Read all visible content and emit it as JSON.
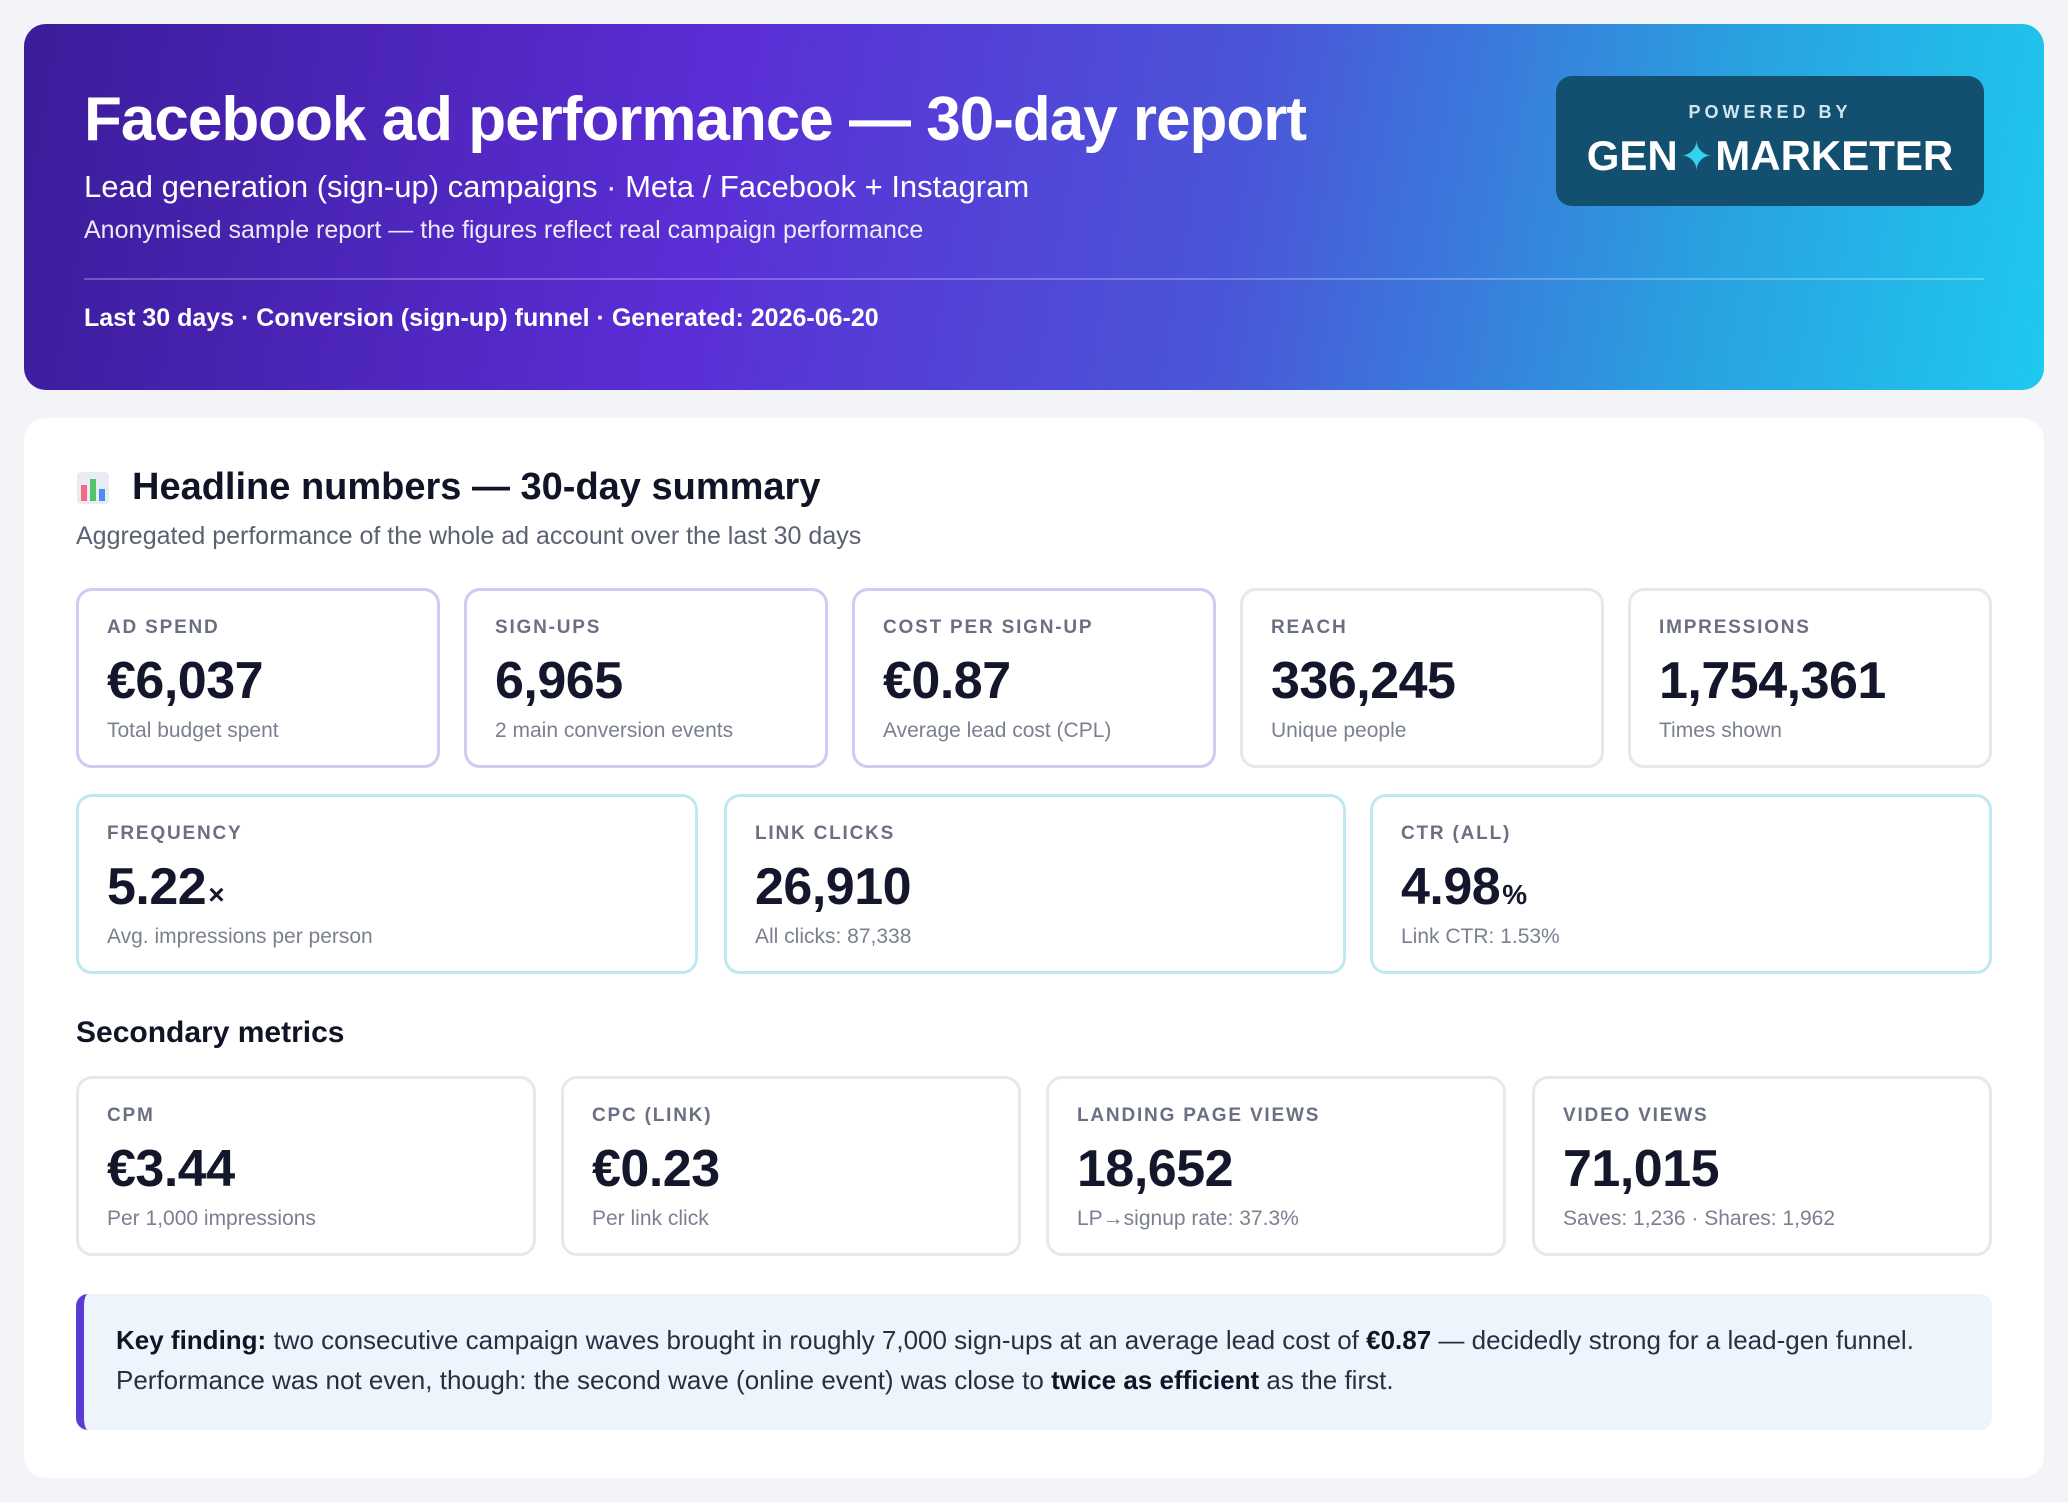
{
  "header": {
    "title": "Facebook ad performance — 30-day report",
    "subtitle": "Lead generation (sign-up) campaigns · Meta / Facebook + Instagram",
    "note": "Anonymised sample report — the figures reflect real campaign performance",
    "meta": "Last 30 days · Conversion (sign-up) funnel · Generated: 2026-06-20",
    "brand": {
      "powered_by": "POWERED BY",
      "name_left": "GEN",
      "sparkle": "✦",
      "name_right": "MARKETER"
    }
  },
  "summary": {
    "icon": "bar-chart-icon",
    "title": "Headline numbers — 30-day summary",
    "subtitle": "Aggregated performance of the whole ad account over the last 30 days",
    "kpis": [
      {
        "label": "AD SPEND",
        "value": "€6,037",
        "desc": "Total budget spent"
      },
      {
        "label": "SIGN-UPS",
        "value": "6,965",
        "desc": "2 main conversion events"
      },
      {
        "label": "COST PER SIGN-UP",
        "value": "€0.87",
        "desc": "Average lead cost (CPL)"
      },
      {
        "label": "REACH",
        "value": "336,245",
        "desc": "Unique people"
      },
      {
        "label": "IMPRESSIONS",
        "value": "1,754,361",
        "desc": "Times shown"
      },
      {
        "label": "FREQUENCY",
        "value": "5.22",
        "unit": "×",
        "desc": "Avg. impressions per person"
      },
      {
        "label": "LINK CLICKS",
        "value": "26,910",
        "desc": "All clicks: 87,338"
      },
      {
        "label": "CTR (ALL)",
        "value": "4.98",
        "unit": "%",
        "desc": "Link CTR: 1.53%"
      }
    ]
  },
  "secondary": {
    "title": "Secondary metrics",
    "kpis": [
      {
        "label": "CPM",
        "value": "€3.44",
        "desc": "Per 1,000 impressions"
      },
      {
        "label": "CPC (LINK)",
        "value": "€0.23",
        "desc": "Per link click"
      },
      {
        "label": "LANDING PAGE VIEWS",
        "value": "18,652",
        "desc": "LP→signup rate: 37.3%"
      },
      {
        "label": "VIDEO VIEWS",
        "value": "71,015",
        "desc": "Saves: 1,236 · Shares: 1,962"
      }
    ]
  },
  "finding": {
    "lead": "Key finding:",
    "text1": " two consecutive campaign waves brought in roughly 7,000 sign-ups at an average lead cost of ",
    "bold1": "€0.87",
    "text2": " — decidedly strong for a lead-gen funnel. Performance was not even, though: the second wave (online event) was close to ",
    "bold2": "twice as efficient",
    "text3": " as the first."
  },
  "colors": {
    "accent_purple": "#5b3bd6",
    "accent_cyan": "#1ec9ee",
    "brand_box": "#13506f"
  }
}
